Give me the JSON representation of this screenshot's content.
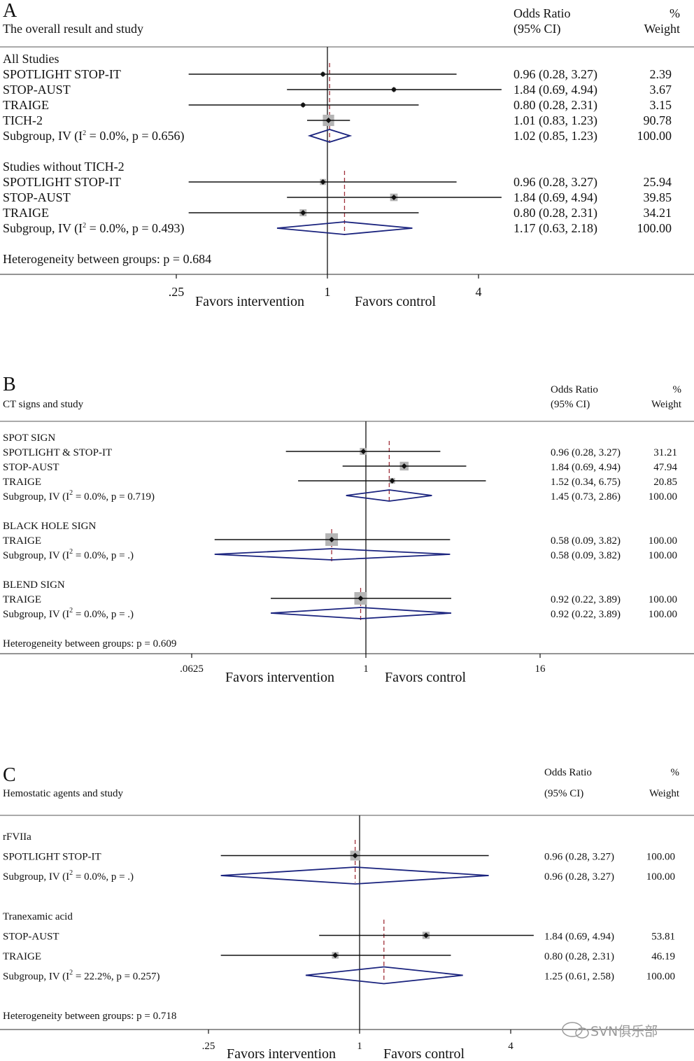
{
  "chart_data": [
    {
      "type": "forest",
      "panel_letter": "A",
      "title": "The overall result and study",
      "columns": {
        "or_line1": "Odds Ratio",
        "or_line2": "(95% CI)",
        "weight_line1": "%",
        "weight_line2": "Weight"
      },
      "x_scale": "log",
      "ticks": [
        {
          "value": 0.25,
          "label": ".25"
        },
        {
          "value": 1,
          "label": "1"
        },
        {
          "value": 4,
          "label": "4"
        }
      ],
      "favors_left": "Favors intervention",
      "favors_right": "Favors  control",
      "groups": [
        {
          "label": "All Studies",
          "pooled_or": 1.02,
          "studies": [
            {
              "label": "SPOTLIGHT STOP-IT",
              "or": 0.96,
              "lo": 0.28,
              "hi": 3.27,
              "ci_text": "0.96 (0.28, 3.27)",
              "weight_text": "2.39",
              "weight": 2.39
            },
            {
              "label": "STOP-AUST",
              "or": 1.84,
              "lo": 0.69,
              "hi": 4.94,
              "ci_text": "1.84 (0.69, 4.94)",
              "weight_text": "3.67",
              "weight": 3.67
            },
            {
              "label": "TRAIGE",
              "or": 0.8,
              "lo": 0.28,
              "hi": 2.31,
              "ci_text": "0.80 (0.28, 2.31)",
              "weight_text": "3.15",
              "weight": 3.15
            },
            {
              "label": "TICH-2",
              "or": 1.01,
              "lo": 0.83,
              "hi": 1.23,
              "ci_text": "1.01 (0.83, 1.23)",
              "weight_text": "90.78",
              "weight": 90.78
            }
          ],
          "subgroup": {
            "label": "Subgroup, IV (I² = 0.0%, p = 0.656)",
            "or": 1.02,
            "lo": 0.85,
            "hi": 1.23,
            "ci_text": "1.02 (0.85, 1.23)",
            "weight_text": "100.00"
          }
        },
        {
          "label": "Studies without TICH-2",
          "pooled_or": 1.17,
          "studies": [
            {
              "label": "SPOTLIGHT STOP-IT",
              "or": 0.96,
              "lo": 0.28,
              "hi": 3.27,
              "ci_text": "0.96 (0.28, 3.27)",
              "weight_text": "25.94",
              "weight": 25.94
            },
            {
              "label": "STOP-AUST",
              "or": 1.84,
              "lo": 0.69,
              "hi": 4.94,
              "ci_text": "1.84 (0.69, 4.94)",
              "weight_text": "39.85",
              "weight": 39.85
            },
            {
              "label": "TRAIGE",
              "or": 0.8,
              "lo": 0.28,
              "hi": 2.31,
              "ci_text": "0.80 (0.28, 2.31)",
              "weight_text": "34.21",
              "weight": 34.21
            }
          ],
          "subgroup": {
            "label": "Subgroup, IV (I² = 0.0%, p = 0.493)",
            "or": 1.17,
            "lo": 0.63,
            "hi": 2.18,
            "ci_text": "1.17 (0.63, 2.18)",
            "weight_text": "100.00"
          }
        }
      ],
      "heterogeneity": "Heterogeneity between groups: p = 0.684"
    },
    {
      "type": "forest",
      "panel_letter": "B",
      "title": "CT signs and study",
      "columns": {
        "or_line1": "Odds Ratio",
        "or_line2": "(95% CI)",
        "weight_line1": "%",
        "weight_line2": "Weight"
      },
      "x_scale": "log",
      "ticks": [
        {
          "value": 0.0625,
          "label": ".0625"
        },
        {
          "value": 1,
          "label": "1"
        },
        {
          "value": 16,
          "label": "16"
        }
      ],
      "favors_left": "Favors intervention",
      "favors_right": "Favors  control",
      "groups": [
        {
          "label": "SPOT SIGN",
          "pooled_or": 1.45,
          "studies": [
            {
              "label": "SPOTLIGHT & STOP-IT",
              "or": 0.96,
              "lo": 0.28,
              "hi": 3.27,
              "ci_text": "0.96 (0.28, 3.27)",
              "weight_text": "31.21",
              "weight": 31.21
            },
            {
              "label": "STOP-AUST",
              "or": 1.84,
              "lo": 0.69,
              "hi": 4.94,
              "ci_text": "1.84 (0.69, 4.94)",
              "weight_text": "47.94",
              "weight": 47.94
            },
            {
              "label": "TRAIGE",
              "or": 1.52,
              "lo": 0.34,
              "hi": 6.75,
              "ci_text": "1.52 (0.34, 6.75)",
              "weight_text": "20.85",
              "weight": 20.85
            }
          ],
          "subgroup": {
            "label": "Subgroup, IV (I² = 0.0%, p = 0.719)",
            "or": 1.45,
            "lo": 0.73,
            "hi": 2.86,
            "ci_text": "1.45 (0.73, 2.86)",
            "weight_text": "100.00"
          }
        },
        {
          "label": "BLACK HOLE SIGN",
          "pooled_or": 0.58,
          "studies": [
            {
              "label": "TRAIGE",
              "or": 0.58,
              "lo": 0.09,
              "hi": 3.82,
              "ci_text": "0.58 (0.09, 3.82)",
              "weight_text": "100.00",
              "weight": 100
            }
          ],
          "subgroup": {
            "label": "Subgroup, IV (I² = 0.0%, p = .)",
            "or": 0.58,
            "lo": 0.09,
            "hi": 3.82,
            "ci_text": "0.58 (0.09, 3.82)",
            "weight_text": "100.00"
          }
        },
        {
          "label": "BLEND SIGN",
          "pooled_or": 0.92,
          "studies": [
            {
              "label": "TRAIGE",
              "or": 0.92,
              "lo": 0.22,
              "hi": 3.89,
              "ci_text": "0.92 (0.22, 3.89)",
              "weight_text": "100.00",
              "weight": 100
            }
          ],
          "subgroup": {
            "label": "Subgroup, IV (I² = 0.0%, p = .)",
            "or": 0.92,
            "lo": 0.22,
            "hi": 3.89,
            "ci_text": "0.92 (0.22, 3.89)",
            "weight_text": "100.00"
          }
        }
      ],
      "heterogeneity": "Heterogeneity between groups: p = 0.609"
    },
    {
      "type": "forest",
      "panel_letter": "C",
      "title": "Hemostatic agents and study",
      "columns": {
        "or_line1": "Odds Ratio",
        "or_line2": "(95% CI)",
        "weight_line1": "%",
        "weight_line2": "Weight"
      },
      "x_scale": "log",
      "ticks": [
        {
          "value": 0.25,
          "label": ".25"
        },
        {
          "value": 1,
          "label": "1"
        },
        {
          "value": 4,
          "label": "4"
        }
      ],
      "favors_left": "Favors intervention",
      "favors_right": "Favors  control",
      "groups": [
        {
          "label": "rFVIIa",
          "pooled_or": 0.96,
          "studies": [
            {
              "label": "SPOTLIGHT STOP-IT",
              "or": 0.96,
              "lo": 0.28,
              "hi": 3.27,
              "ci_text": "0.96 (0.28, 3.27)",
              "weight_text": "100.00",
              "weight": 100
            }
          ],
          "subgroup": {
            "label": "Subgroup, IV (I² = 0.0%, p = .)",
            "or": 0.96,
            "lo": 0.28,
            "hi": 3.27,
            "ci_text": "0.96 (0.28, 3.27)",
            "weight_text": "100.00"
          }
        },
        {
          "label": "Tranexamic acid",
          "pooled_or": 1.25,
          "studies": [
            {
              "label": "STOP-AUST",
              "or": 1.84,
              "lo": 0.69,
              "hi": 4.94,
              "ci_text": "1.84 (0.69, 4.94)",
              "weight_text": "53.81",
              "weight": 53.81
            },
            {
              "label": "TRAIGE",
              "or": 0.8,
              "lo": 0.28,
              "hi": 2.31,
              "ci_text": "0.80 (0.28, 2.31)",
              "weight_text": "46.19",
              "weight": 46.19
            }
          ],
          "subgroup": {
            "label": "Subgroup, IV (I² = 22.2%, p = 0.257)",
            "or": 1.25,
            "lo": 0.61,
            "hi": 2.58,
            "ci_text": "1.25 (0.61, 2.58)",
            "weight_text": "100.00"
          }
        }
      ],
      "heterogeneity": "Heterogeneity between groups: p = 0.718"
    }
  ],
  "watermark": "SVN俱乐部",
  "colors": {
    "diamond": "#1a237e",
    "pooled_line": "#a0303a",
    "weight_box": "#b5b5b5",
    "ink": "#111111",
    "rule": "#555555"
  }
}
